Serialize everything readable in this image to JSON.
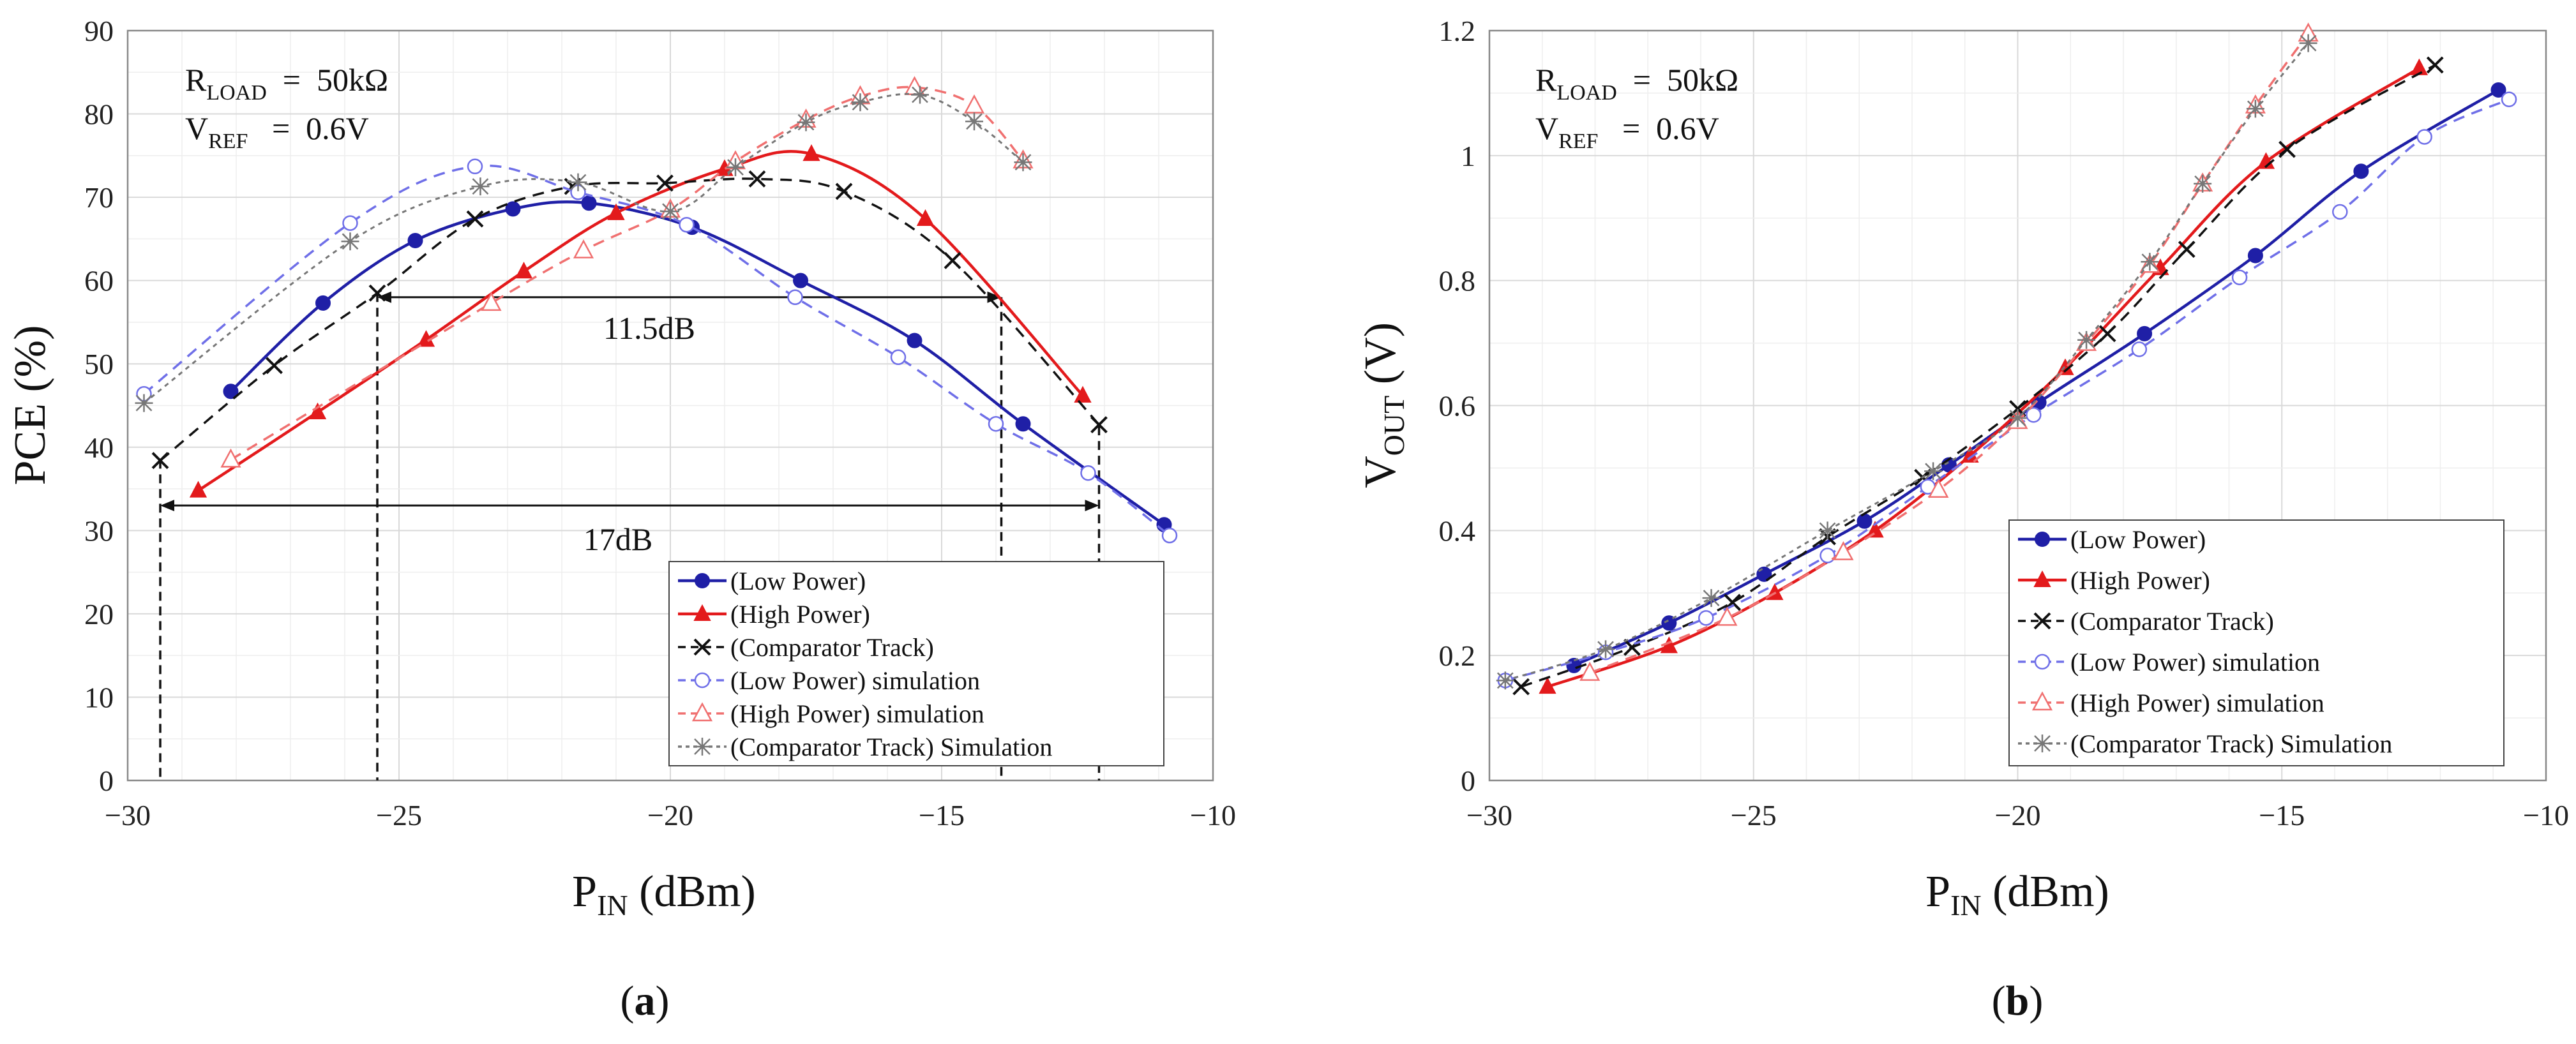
{
  "colors": {
    "low_power": "#1f1fa6",
    "high_power": "#e31a1c",
    "comparator": "#111111",
    "low_power_sim": "#6f6fe8",
    "high_power_sim": "#f07070",
    "comparator_sim": "#777777"
  },
  "chart_data": [
    {
      "type": "line",
      "panel": "a",
      "caption_paren_open": "(",
      "caption_letter": "a",
      "caption_paren_close": ")",
      "xlabel_main": "P",
      "xlabel_sub": "IN",
      "xlabel_rest": " (dBm)",
      "ylabel": "PCE (%)",
      "xlim": [
        -30,
        -10
      ],
      "ylim": [
        0,
        90
      ],
      "xticks": [
        -30,
        -25,
        -20,
        -15,
        -10
      ],
      "yticks": [
        0,
        10,
        20,
        30,
        40,
        50,
        60,
        70,
        80,
        90
      ],
      "annotation": {
        "line1_main": "R",
        "line1_sub": "LOAD",
        "line1_rest": "  =  50kΩ",
        "line2_main": "V",
        "line2_sub": "REF",
        "line2_rest": "   =  0.6V"
      },
      "range_labels": [
        {
          "text": "11.5dB",
          "x_from": -25.4,
          "x_to": -13.9,
          "y": 58
        },
        {
          "text": "17dB",
          "x_from": -29.4,
          "x_to": -12.1,
          "y": 33
        }
      ],
      "dashed_markers": [
        {
          "x": -29.4,
          "y_top": 38.5
        },
        {
          "x": -25.4,
          "y_top": 58.5
        },
        {
          "x": -13.9,
          "y_top": 58
        },
        {
          "x": -12.1,
          "y_top": 42.5
        }
      ],
      "legend": {
        "position": "bottom-right"
      },
      "series": [
        {
          "name": "(Low Power)",
          "style": "solid",
          "marker": "circle",
          "color_key": "low_power",
          "x": [
            -28.1,
            -26.4,
            -24.7,
            -22.9,
            -21.5,
            -19.6,
            -17.6,
            -15.5,
            -13.5,
            -10.9
          ],
          "y": [
            46.7,
            57.3,
            64.8,
            68.6,
            69.3,
            66.4,
            60.0,
            52.8,
            42.8,
            30.7
          ]
        },
        {
          "name": "(High Power)",
          "style": "solid",
          "marker": "triangle",
          "color_key": "high_power",
          "x": [
            -28.7,
            -26.5,
            -24.5,
            -22.7,
            -21.0,
            -19.0,
            -17.4,
            -15.3,
            -12.4
          ],
          "y": [
            34.8,
            44.2,
            52.9,
            61.1,
            68.1,
            73.4,
            75.2,
            67.4,
            46.2
          ]
        },
        {
          "name": "(Comparator Track)",
          "style": "dashed",
          "marker": "x",
          "color_key": "comparator",
          "x": [
            -29.4,
            -27.3,
            -25.4,
            -23.6,
            -21.8,
            -20.1,
            -18.4,
            -16.8,
            -14.8,
            -12.1
          ],
          "y": [
            38.4,
            49.8,
            58.5,
            67.4,
            71.3,
            71.7,
            72.2,
            70.7,
            62.4,
            42.7
          ]
        },
        {
          "name": "(Low Power) simulation",
          "style": "dashed",
          "marker": "open-circle",
          "color_key": "low_power_sim",
          "x": [
            -29.7,
            -25.9,
            -23.6,
            -21.7,
            -19.7,
            -17.7,
            -15.8,
            -14.0,
            -12.3,
            -10.8
          ],
          "y": [
            46.4,
            66.9,
            73.7,
            70.6,
            66.7,
            58.0,
            50.8,
            42.8,
            36.9,
            29.4
          ]
        },
        {
          "name": "(High Power) simulation",
          "style": "dashed",
          "marker": "open-triangle",
          "color_key": "high_power_sim",
          "x": [
            -28.1,
            -23.3,
            -21.6,
            -20.0,
            -18.8,
            -17.5,
            -16.5,
            -15.5,
            -14.4,
            -13.5
          ],
          "y": [
            38.5,
            57.3,
            63.6,
            68.5,
            74.3,
            79.3,
            82.1,
            83.2,
            81.0,
            74.4
          ]
        },
        {
          "name": "(Comparator Track) Simulation",
          "style": "dotted",
          "marker": "asterisk",
          "color_key": "comparator_sim",
          "x": [
            -29.7,
            -25.9,
            -23.5,
            -21.7,
            -20.0,
            -18.8,
            -17.5,
            -16.5,
            -15.4,
            -14.4,
            -13.5
          ],
          "y": [
            45.3,
            64.7,
            71.3,
            71.8,
            68.3,
            73.6,
            79.0,
            81.4,
            82.3,
            79.1,
            74.2
          ]
        }
      ]
    },
    {
      "type": "line",
      "panel": "b",
      "caption_paren_open": "(",
      "caption_letter": "b",
      "caption_paren_close": ")",
      "xlabel_main": "P",
      "xlabel_sub": "IN",
      "xlabel_rest": " (dBm)",
      "ylabel_main": "V",
      "ylabel_sub": "OUT",
      "ylabel_rest": " (V)",
      "xlim": [
        -30,
        -10
      ],
      "ylim": [
        0,
        1.2
      ],
      "xticks": [
        -30,
        -25,
        -20,
        -15,
        -10
      ],
      "yticks": [
        0,
        0.2,
        0.4,
        0.6,
        0.8,
        1,
        1.2
      ],
      "annotation": {
        "line1_main": "R",
        "line1_sub": "LOAD",
        "line1_rest": "  =  50kΩ",
        "line2_main": "V",
        "line2_sub": "REF",
        "line2_rest": "   =  0.6V"
      },
      "legend": {
        "position": "bottom-right"
      },
      "series": [
        {
          "name": "(Low Power)",
          "style": "solid",
          "marker": "circle",
          "color_key": "low_power",
          "x": [
            -28.4,
            -26.6,
            -24.8,
            -22.9,
            -21.3,
            -19.6,
            -17.6,
            -15.5,
            -13.5,
            -10.9
          ],
          "y": [
            0.184,
            0.252,
            0.33,
            0.415,
            0.505,
            0.605,
            0.715,
            0.84,
            0.975,
            1.105
          ]
        },
        {
          "name": "(High Power)",
          "style": "solid",
          "marker": "triangle",
          "color_key": "high_power",
          "x": [
            -28.9,
            -26.6,
            -24.6,
            -22.7,
            -20.9,
            -19.1,
            -17.3,
            -15.3,
            -12.4
          ],
          "y": [
            0.15,
            0.215,
            0.3,
            0.4,
            0.52,
            0.66,
            0.82,
            0.99,
            1.14
          ]
        },
        {
          "name": "(Comparator Track)",
          "style": "dashed",
          "marker": "x",
          "color_key": "comparator",
          "x": [
            -29.4,
            -27.3,
            -25.4,
            -23.6,
            -21.8,
            -20.0,
            -18.3,
            -16.8,
            -14.9,
            -12.1
          ],
          "y": [
            0.15,
            0.213,
            0.285,
            0.39,
            0.485,
            0.595,
            0.715,
            0.85,
            1.01,
            1.145
          ]
        },
        {
          "name": "(Low Power) simulation",
          "style": "dashed",
          "marker": "open-circle",
          "color_key": "low_power_sim",
          "x": [
            -29.7,
            -27.8,
            -25.9,
            -23.6,
            -21.7,
            -19.7,
            -17.7,
            -15.8,
            -13.9,
            -12.3,
            -10.7
          ],
          "y": [
            0.16,
            0.205,
            0.26,
            0.36,
            0.47,
            0.585,
            0.69,
            0.805,
            0.91,
            1.03,
            1.09
          ]
        },
        {
          "name": "(High Power) simulation",
          "style": "dashed",
          "marker": "open-triangle",
          "color_key": "high_power_sim",
          "x": [
            -28.1,
            -25.5,
            -23.3,
            -21.5,
            -20.0,
            -18.7,
            -17.5,
            -16.5,
            -15.5,
            -14.5
          ],
          "y": [
            0.172,
            0.26,
            0.365,
            0.465,
            0.575,
            0.7,
            0.825,
            0.955,
            1.08,
            1.195
          ]
        },
        {
          "name": "(Comparator Track) Simulation",
          "style": "dotted",
          "marker": "asterisk",
          "color_key": "comparator_sim",
          "x": [
            -29.7,
            -27.8,
            -25.8,
            -23.6,
            -21.6,
            -20.0,
            -18.7,
            -17.5,
            -16.5,
            -15.5,
            -14.5
          ],
          "y": [
            0.16,
            0.21,
            0.292,
            0.4,
            0.495,
            0.58,
            0.705,
            0.83,
            0.955,
            1.075,
            1.18
          ]
        }
      ]
    }
  ]
}
